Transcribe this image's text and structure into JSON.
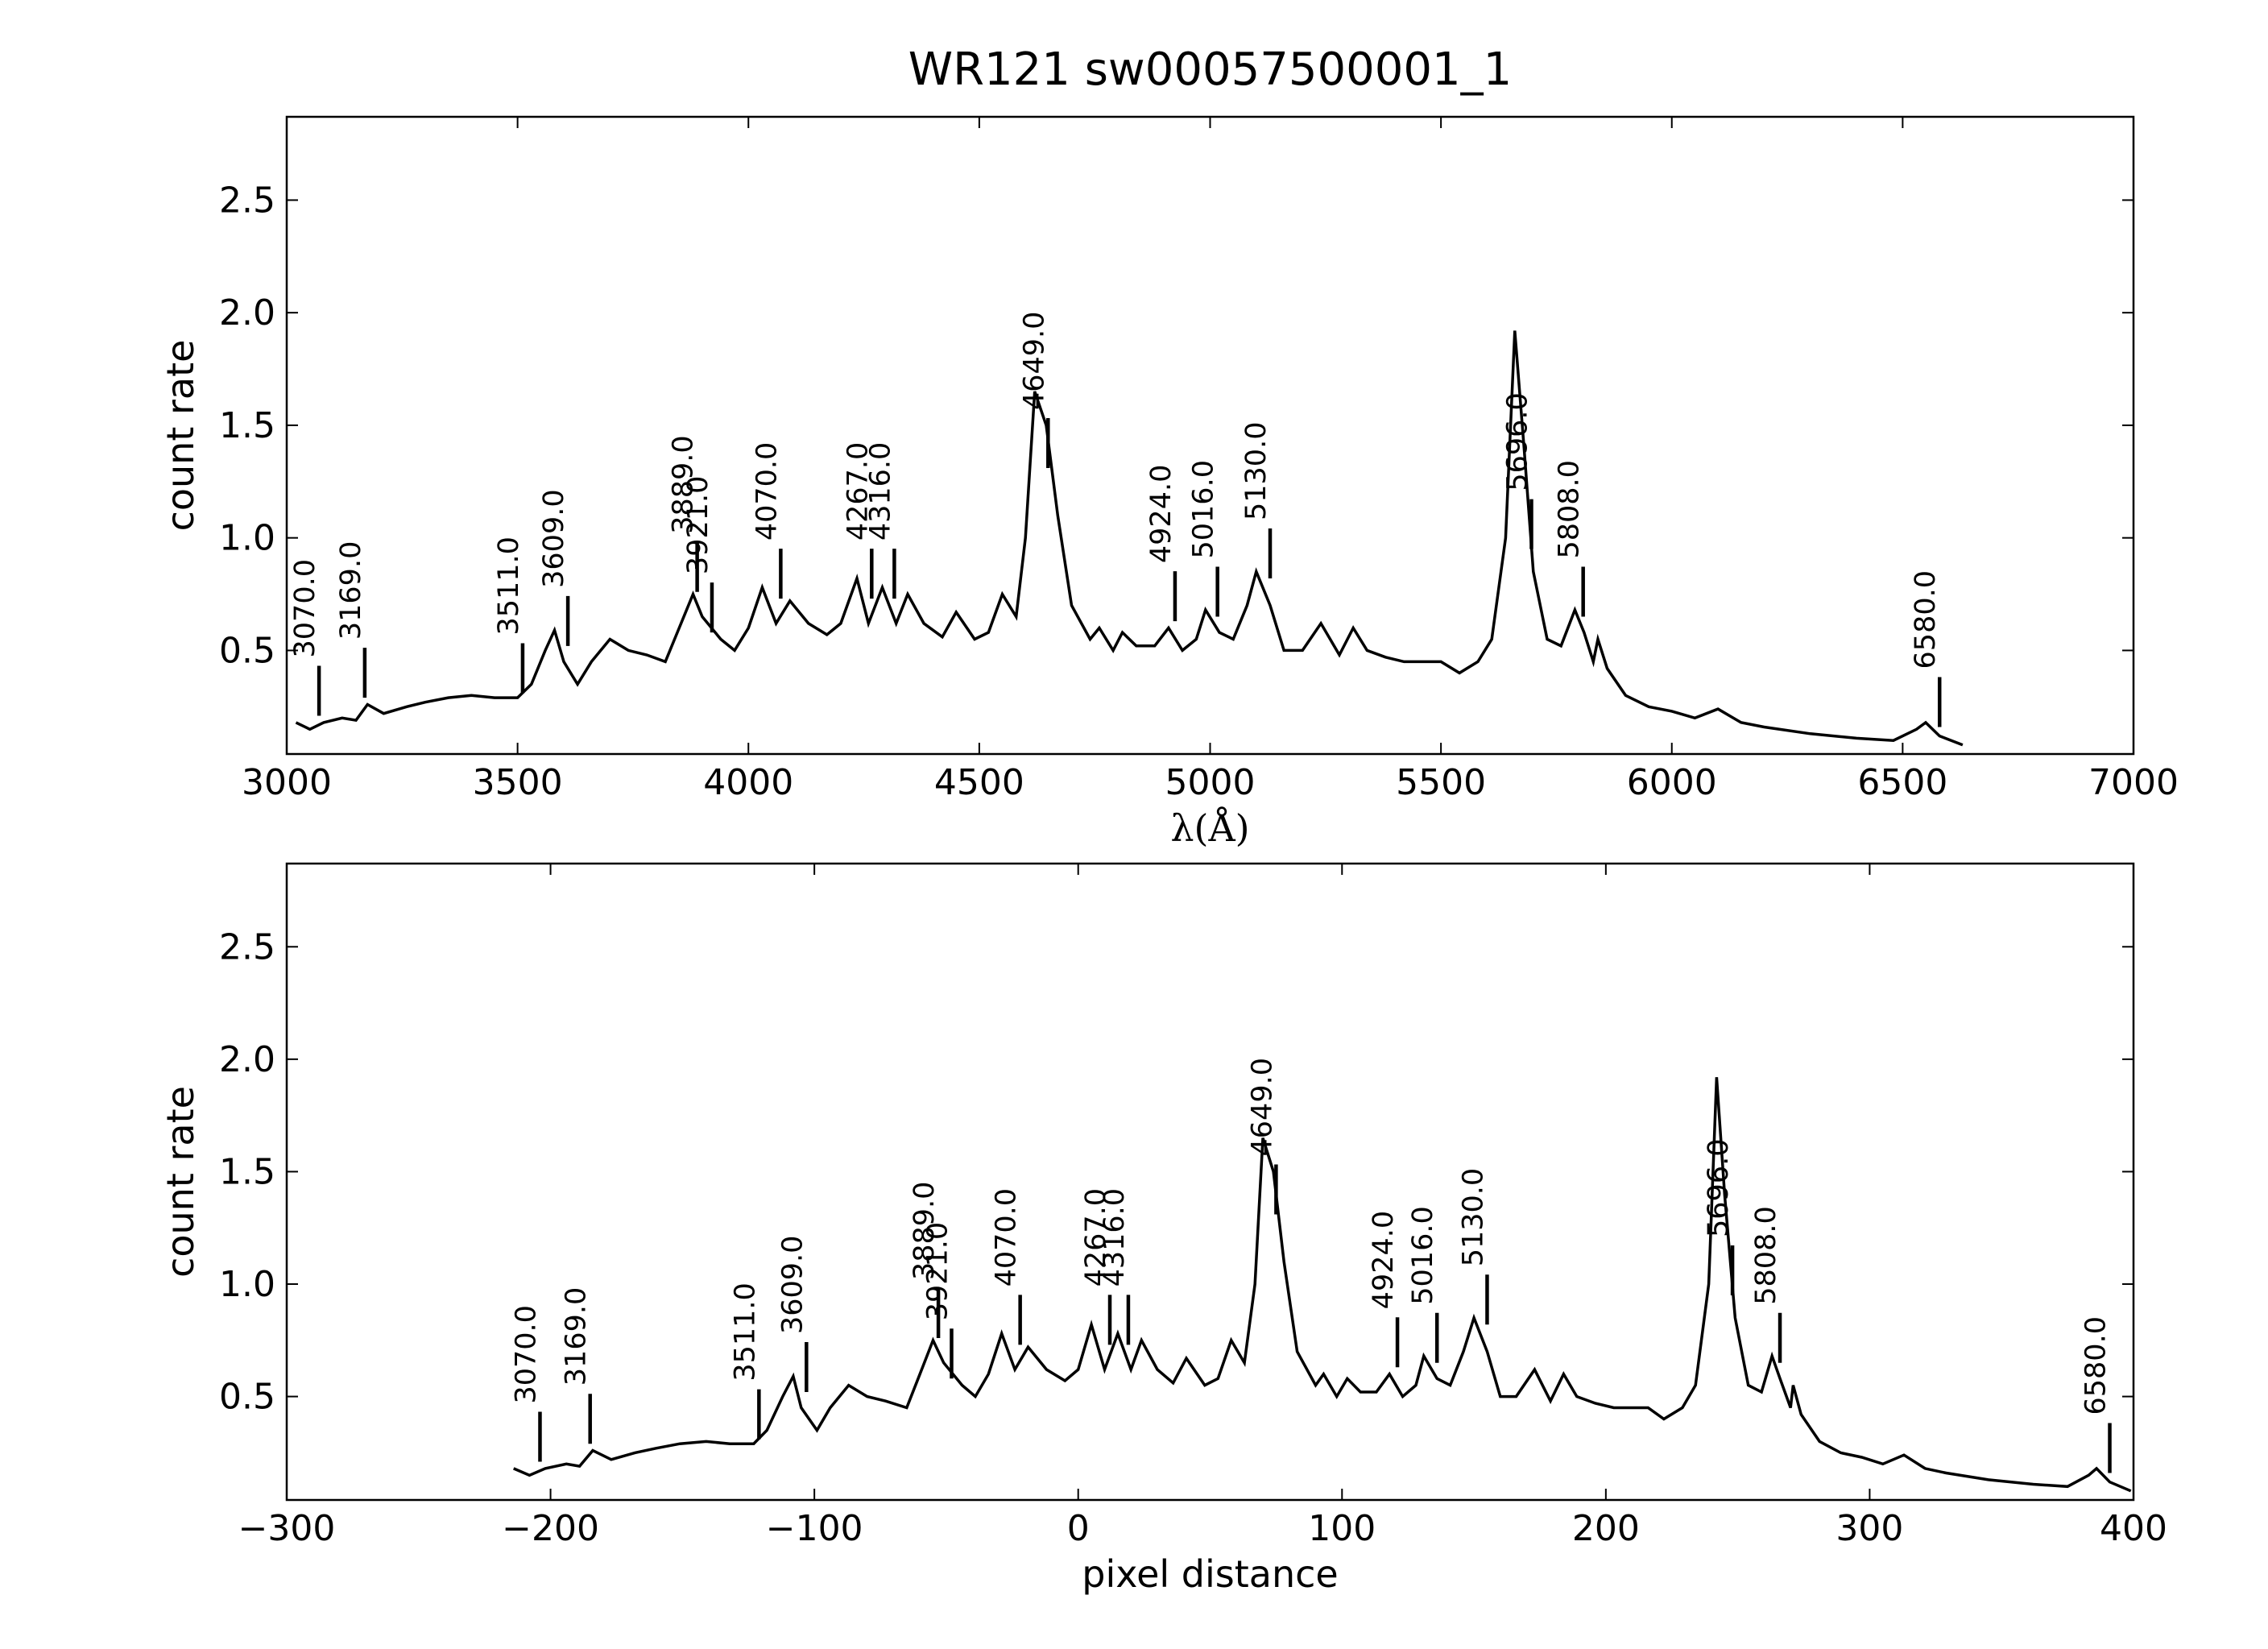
{
  "chart_data": [
    {
      "type": "line",
      "title": "WR121  sw00057500001_1",
      "xlabel": "λ(Å)",
      "ylabel": "count rate",
      "color": "#000000",
      "xlim": [
        3000,
        7000
      ],
      "ylim": [
        0.04,
        2.87
      ],
      "xticks": [
        3000,
        3500,
        4000,
        4500,
        5000,
        5500,
        6000,
        6500,
        7000
      ],
      "yticks": [
        0.5,
        1.0,
        1.5,
        2.0,
        2.5
      ],
      "x": [
        3020,
        3050,
        3080,
        3120,
        3150,
        3175,
        3210,
        3260,
        3300,
        3350,
        3400,
        3450,
        3500,
        3530,
        3560,
        3580,
        3600,
        3630,
        3660,
        3700,
        3740,
        3780,
        3820,
        3850,
        3880,
        3900,
        3940,
        3970,
        4000,
        4030,
        4060,
        4090,
        4130,
        4170,
        4200,
        4235,
        4260,
        4290,
        4320,
        4345,
        4380,
        4420,
        4450,
        4490,
        4520,
        4550,
        4580,
        4600,
        4620,
        4645,
        4670,
        4700,
        4740,
        4760,
        4790,
        4810,
        4840,
        4880,
        4910,
        4940,
        4970,
        4990,
        5020,
        5050,
        5080,
        5100,
        5130,
        5160,
        5200,
        5240,
        5280,
        5310,
        5340,
        5380,
        5420,
        5460,
        5500,
        5540,
        5580,
        5610,
        5640,
        5660,
        5680,
        5700,
        5730,
        5760,
        5790,
        5810,
        5830,
        5840,
        5860,
        5900,
        5950,
        6000,
        6050,
        6100,
        6150,
        6200,
        6300,
        6400,
        6480,
        6530,
        6550,
        6580,
        6630
      ],
      "values": [
        0.18,
        0.15,
        0.18,
        0.2,
        0.19,
        0.26,
        0.22,
        0.25,
        0.27,
        0.29,
        0.3,
        0.29,
        0.29,
        0.35,
        0.5,
        0.59,
        0.45,
        0.35,
        0.45,
        0.55,
        0.5,
        0.48,
        0.45,
        0.6,
        0.75,
        0.65,
        0.55,
        0.5,
        0.6,
        0.78,
        0.62,
        0.72,
        0.62,
        0.57,
        0.62,
        0.82,
        0.62,
        0.78,
        0.62,
        0.75,
        0.62,
        0.56,
        0.67,
        0.55,
        0.58,
        0.75,
        0.65,
        1.0,
        1.65,
        1.5,
        1.1,
        0.7,
        0.55,
        0.6,
        0.5,
        0.58,
        0.52,
        0.52,
        0.6,
        0.5,
        0.55,
        0.68,
        0.58,
        0.55,
        0.7,
        0.85,
        0.7,
        0.5,
        0.5,
        0.62,
        0.48,
        0.6,
        0.5,
        0.47,
        0.45,
        0.45,
        0.45,
        0.4,
        0.45,
        0.55,
        1.0,
        1.92,
        1.4,
        0.85,
        0.55,
        0.52,
        0.68,
        0.58,
        0.45,
        0.55,
        0.42,
        0.3,
        0.25,
        0.23,
        0.2,
        0.24,
        0.18,
        0.16,
        0.13,
        0.11,
        0.1,
        0.15,
        0.18,
        0.12,
        0.08
      ],
      "annotations": [
        {
          "label": "3070.0",
          "x": 3070,
          "y": 0.21
        },
        {
          "label": "3169.0",
          "x": 3169,
          "y": 0.29
        },
        {
          "label": "3511.0",
          "x": 3511,
          "y": 0.31
        },
        {
          "label": "3609.0",
          "x": 3609,
          "y": 0.52
        },
        {
          "label": "3889.0",
          "x": 3889,
          "y": 0.76
        },
        {
          "label": "3921.0",
          "x": 3921,
          "y": 0.58
        },
        {
          "label": "4070.0",
          "x": 4070,
          "y": 0.73
        },
        {
          "label": "4267.0",
          "x": 4267,
          "y": 0.73
        },
        {
          "label": "4316.0",
          "x": 4316,
          "y": 0.73
        },
        {
          "label": "4649.0",
          "x": 4649,
          "y": 1.31
        },
        {
          "label": "4924.0",
          "x": 4924,
          "y": 0.63
        },
        {
          "label": "5016.0",
          "x": 5016,
          "y": 0.65
        },
        {
          "label": "5130.0",
          "x": 5130,
          "y": 0.82
        },
        {
          "label": "5696.0",
          "x": 5696,
          "y": 0.95
        },
        {
          "label": "5808.0",
          "x": 5808,
          "y": 0.65
        },
        {
          "label": "6580.0",
          "x": 6580,
          "y": 0.16
        }
      ]
    },
    {
      "type": "line",
      "xlabel": "pixel distance",
      "ylabel": "count rate",
      "color": "#000000",
      "xlim": [
        -300,
        400
      ],
      "ylim": [
        0.04,
        2.87
      ],
      "xticks": [
        {
          "value": -300,
          "label": "−300"
        },
        {
          "value": -200,
          "label": "−200"
        },
        {
          "value": -100,
          "label": "−100"
        },
        0,
        100,
        200,
        300,
        400
      ],
      "yticks": [
        0.5,
        1.0,
        1.5,
        2.0,
        2.5
      ],
      "x": [
        -214,
        -208,
        -202,
        -194,
        -189,
        -184,
        -177,
        -168,
        -160,
        -151,
        -141,
        -132,
        -123,
        -118,
        -112,
        -108,
        -105,
        -99,
        -94,
        -87,
        -80,
        -73,
        -65,
        -60,
        -55,
        -51,
        -44,
        -39,
        -34,
        -29,
        -24,
        -19,
        -12,
        -5,
        0,
        5,
        10,
        15,
        20,
        24,
        30,
        36,
        41,
        48,
        53,
        58,
        63,
        67,
        70,
        74,
        78,
        83,
        90,
        93,
        98,
        102,
        107,
        113,
        118,
        123,
        128,
        131,
        136,
        141,
        146,
        150,
        155,
        160,
        166,
        173,
        179,
        184,
        189,
        196,
        203,
        209,
        216,
        222,
        229,
        234,
        239,
        242,
        245,
        249,
        254,
        259,
        263,
        266,
        270,
        271,
        274,
        281,
        289,
        297,
        305,
        313,
        321,
        329,
        345,
        362,
        375,
        383,
        386,
        391,
        399
      ],
      "values": [
        0.18,
        0.15,
        0.18,
        0.2,
        0.19,
        0.26,
        0.22,
        0.25,
        0.27,
        0.29,
        0.3,
        0.29,
        0.29,
        0.35,
        0.5,
        0.59,
        0.45,
        0.35,
        0.45,
        0.55,
        0.5,
        0.48,
        0.45,
        0.6,
        0.75,
        0.65,
        0.55,
        0.5,
        0.6,
        0.78,
        0.62,
        0.72,
        0.62,
        0.57,
        0.62,
        0.82,
        0.62,
        0.78,
        0.62,
        0.75,
        0.62,
        0.56,
        0.67,
        0.55,
        0.58,
        0.75,
        0.65,
        1.0,
        1.65,
        1.5,
        1.1,
        0.7,
        0.55,
        0.6,
        0.5,
        0.58,
        0.52,
        0.52,
        0.6,
        0.5,
        0.55,
        0.68,
        0.58,
        0.55,
        0.7,
        0.85,
        0.7,
        0.5,
        0.5,
        0.62,
        0.48,
        0.6,
        0.5,
        0.47,
        0.45,
        0.45,
        0.45,
        0.4,
        0.45,
        0.55,
        1.0,
        1.92,
        1.4,
        0.85,
        0.55,
        0.52,
        0.68,
        0.58,
        0.45,
        0.55,
        0.42,
        0.3,
        0.25,
        0.23,
        0.2,
        0.24,
        0.18,
        0.16,
        0.13,
        0.11,
        0.1,
        0.15,
        0.18,
        0.12,
        0.08
      ],
      "annotations": [
        {
          "label": "3070.0",
          "x": -204,
          "y": 0.21
        },
        {
          "label": "3169.0",
          "x": -185,
          "y": 0.29
        },
        {
          "label": "3511.0",
          "x": -121,
          "y": 0.31
        },
        {
          "label": "3609.0",
          "x": -103,
          "y": 0.52
        },
        {
          "label": "3889.0",
          "x": -53,
          "y": 0.76
        },
        {
          "label": "3921.0",
          "x": -48,
          "y": 0.58
        },
        {
          "label": "4070.0",
          "x": -22,
          "y": 0.73
        },
        {
          "label": "4267.0",
          "x": 12,
          "y": 0.73
        },
        {
          "label": "4316.0",
          "x": 19,
          "y": 0.73
        },
        {
          "label": "4649.0",
          "x": 75,
          "y": 1.31
        },
        {
          "label": "4924.0",
          "x": 121,
          "y": 0.63
        },
        {
          "label": "5016.0",
          "x": 136,
          "y": 0.65
        },
        {
          "label": "5130.0",
          "x": 155,
          "y": 0.82
        },
        {
          "label": "5696.0",
          "x": 248,
          "y": 0.95
        },
        {
          "label": "5808.0",
          "x": 266,
          "y": 0.65
        },
        {
          "label": "6580.0",
          "x": 391,
          "y": 0.16
        }
      ]
    }
  ]
}
